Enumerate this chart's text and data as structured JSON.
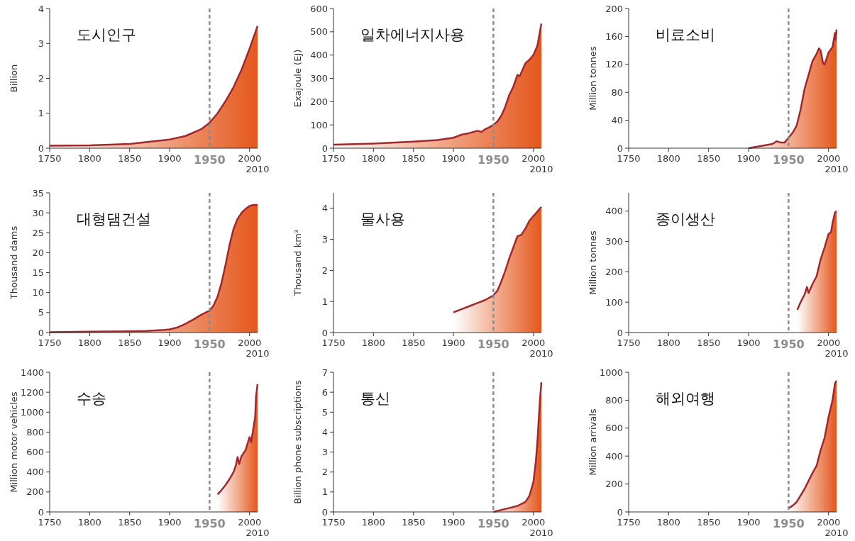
{
  "chart_data": [
    {
      "type": "area",
      "title": "도시인구",
      "ylabel": "Billion",
      "annotations": [
        "2010"
      ],
      "xlim": [
        1750,
        2010
      ],
      "ylim": [
        0,
        4
      ],
      "xticks": [
        1750,
        1800,
        1850,
        1900,
        2000
      ],
      "yticks": [
        0,
        1,
        2,
        3,
        4
      ],
      "grid": false,
      "ref_lines": [
        {
          "axis": "x",
          "value": 1950,
          "label": "1950",
          "color": "#8c8c8c",
          "line_style": "dashed"
        }
      ],
      "series": [
        {
          "color": "#a3262a",
          "x": [
            1750,
            1800,
            1850,
            1900,
            1920,
            1940,
            1950,
            1960,
            1970,
            1980,
            1990,
            2000,
            2010
          ],
          "values": [
            0.07,
            0.08,
            0.12,
            0.25,
            0.35,
            0.55,
            0.73,
            1.0,
            1.35,
            1.75,
            2.25,
            2.85,
            3.5
          ]
        }
      ]
    },
    {
      "type": "area",
      "title": "일차에너지사용",
      "ylabel": "Exajoule (EJ)",
      "annotations": [
        "2010"
      ],
      "xlim": [
        1750,
        2010
      ],
      "ylim": [
        0,
        600
      ],
      "xticks": [
        1750,
        1800,
        1850,
        1900,
        2000
      ],
      "yticks": [
        0,
        100,
        200,
        300,
        400,
        500,
        600
      ],
      "grid": false,
      "ref_lines": [
        {
          "axis": "x",
          "value": 1950,
          "label": "1950",
          "color": "#8c8c8c",
          "line_style": "dashed"
        }
      ],
      "series": [
        {
          "color": "#a3262a",
          "x": [
            1750,
            1800,
            1850,
            1880,
            1900,
            1910,
            1920,
            1930,
            1935,
            1940,
            1945,
            1950,
            1955,
            1960,
            1965,
            1970,
            1975,
            1980,
            1983,
            1990,
            1995,
            2000,
            2005,
            2010
          ],
          "values": [
            15,
            20,
            28,
            35,
            45,
            58,
            65,
            75,
            70,
            82,
            90,
            100,
            115,
            140,
            180,
            230,
            265,
            315,
            310,
            365,
            380,
            400,
            440,
            535
          ]
        }
      ]
    },
    {
      "type": "area",
      "title": "비료소비",
      "ylabel": "Million tonnes",
      "annotations": [
        "2010"
      ],
      "xlim": [
        1750,
        2010
      ],
      "ylim": [
        0,
        200
      ],
      "xticks": [
        1750,
        1800,
        1850,
        1900,
        2000
      ],
      "yticks": [
        0,
        40,
        80,
        120,
        160,
        200
      ],
      "grid": false,
      "ref_lines": [
        {
          "axis": "x",
          "value": 1950,
          "label": "1950",
          "color": "#8c8c8c",
          "line_style": "dashed"
        }
      ],
      "series": [
        {
          "color": "#a3262a",
          "x": [
            1900,
            1910,
            1920,
            1930,
            1935,
            1940,
            1945,
            1950,
            1955,
            1960,
            1965,
            1970,
            1975,
            1980,
            1985,
            1988,
            1990,
            1993,
            1995,
            2000,
            2005,
            2008,
            2009,
            2010
          ],
          "values": [
            0,
            2,
            4,
            6,
            10,
            8,
            8,
            15,
            22,
            32,
            55,
            85,
            105,
            125,
            135,
            143,
            140,
            122,
            120,
            137,
            145,
            165,
            155,
            170
          ]
        }
      ]
    },
    {
      "type": "area",
      "title": "대형댐건설",
      "ylabel": "Thousand dams",
      "annotations": [
        "2010"
      ],
      "xlim": [
        1750,
        2010
      ],
      "ylim": [
        0,
        35
      ],
      "xticks": [
        1750,
        1800,
        1850,
        1900,
        2000
      ],
      "yticks": [
        0,
        5,
        10,
        15,
        20,
        25,
        30,
        35
      ],
      "grid": false,
      "ref_lines": [
        {
          "axis": "x",
          "value": 1950,
          "label": "1950",
          "color": "#8c8c8c",
          "line_style": "dashed"
        }
      ],
      "series": [
        {
          "color": "#a3262a",
          "x": [
            1750,
            1800,
            1850,
            1870,
            1890,
            1900,
            1910,
            1920,
            1930,
            1940,
            1950,
            1955,
            1960,
            1965,
            1970,
            1975,
            1980,
            1985,
            1990,
            1995,
            2000,
            2005,
            2010
          ],
          "values": [
            0.1,
            0.2,
            0.3,
            0.4,
            0.6,
            0.8,
            1.3,
            2.2,
            3.3,
            4.5,
            5.5,
            6.8,
            9,
            12.5,
            17,
            22,
            26,
            28.5,
            30,
            31,
            31.7,
            32,
            32
          ]
        }
      ]
    },
    {
      "type": "area",
      "title": "물사용",
      "ylabel": "Thousand km³",
      "annotations": [
        "2010"
      ],
      "xlim": [
        1750,
        2010
      ],
      "ylim": [
        0,
        4.5
      ],
      "xticks": [
        1750,
        1800,
        1850,
        1900,
        2000
      ],
      "yticks": [
        0,
        1,
        2,
        3,
        4
      ],
      "grid": false,
      "ref_lines": [
        {
          "axis": "x",
          "value": 1950,
          "label": "1950",
          "color": "#8c8c8c",
          "line_style": "dashed"
        }
      ],
      "series": [
        {
          "color": "#a3262a",
          "x": [
            1900,
            1910,
            1920,
            1930,
            1940,
            1950,
            1955,
            1960,
            1965,
            1970,
            1975,
            1980,
            1985,
            1990,
            1995,
            2000,
            2005,
            2010
          ],
          "values": [
            0.65,
            0.75,
            0.85,
            0.95,
            1.05,
            1.2,
            1.35,
            1.65,
            2.0,
            2.4,
            2.75,
            3.1,
            3.15,
            3.35,
            3.6,
            3.75,
            3.9,
            4.05
          ]
        }
      ]
    },
    {
      "type": "area",
      "title": "종이생산",
      "ylabel": "Million tonnes",
      "annotations": [
        "2010"
      ],
      "xlim": [
        1750,
        2010
      ],
      "ylim": [
        0,
        460
      ],
      "xticks": [
        1750,
        1800,
        1850,
        1900,
        2000
      ],
      "yticks": [
        0,
        100,
        200,
        300,
        400
      ],
      "grid": false,
      "ref_lines": [
        {
          "axis": "x",
          "value": 1950,
          "label": "1950",
          "color": "#8c8c8c",
          "line_style": "dashed"
        }
      ],
      "series": [
        {
          "color": "#a3262a",
          "x": [
            1961,
            1965,
            1970,
            1973,
            1975,
            1980,
            1985,
            1990,
            1995,
            2000,
            2003,
            2005,
            2008,
            2010
          ],
          "values": [
            75,
            100,
            125,
            150,
            130,
            160,
            185,
            240,
            280,
            325,
            330,
            360,
            395,
            400
          ]
        }
      ]
    },
    {
      "type": "area",
      "title": "수송",
      "ylabel": "Million motor vehicles",
      "annotations": [
        "2010"
      ],
      "xlim": [
        1750,
        2010
      ],
      "ylim": [
        0,
        1400
      ],
      "xticks": [
        1750,
        1800,
        1850,
        1900,
        2000
      ],
      "yticks": [
        0,
        200,
        400,
        600,
        800,
        1000,
        1200,
        1400
      ],
      "grid": false,
      "ref_lines": [
        {
          "axis": "x",
          "value": 1950,
          "label": "1950",
          "color": "#8c8c8c",
          "line_style": "dashed"
        }
      ],
      "series": [
        {
          "color": "#a3262a",
          "x": [
            1960,
            1965,
            1970,
            1975,
            1980,
            1983,
            1985,
            1987,
            1990,
            1995,
            2000,
            2002,
            2005,
            2007,
            2008,
            2010
          ],
          "values": [
            175,
            220,
            270,
            330,
            400,
            470,
            550,
            480,
            560,
            620,
            750,
            700,
            850,
            950,
            1150,
            1280
          ]
        }
      ]
    },
    {
      "type": "area",
      "title": "통신",
      "ylabel": "Billion phone subscriptions",
      "annotations": [
        "2010"
      ],
      "xlim": [
        1750,
        2010
      ],
      "ylim": [
        0,
        7
      ],
      "xticks": [
        1750,
        1800,
        1850,
        1900,
        2000
      ],
      "yticks": [
        0,
        1,
        2,
        3,
        4,
        5,
        6,
        7
      ],
      "grid": false,
      "ref_lines": [
        {
          "axis": "x",
          "value": 1950,
          "label": "1950",
          "color": "#8c8c8c",
          "line_style": "dashed"
        }
      ],
      "series": [
        {
          "color": "#a3262a",
          "x": [
            1950,
            1960,
            1970,
            1980,
            1990,
            1995,
            2000,
            2003,
            2005,
            2008,
            2010
          ],
          "values": [
            0.0,
            0.1,
            0.2,
            0.3,
            0.5,
            0.8,
            1.5,
            2.5,
            3.5,
            5.5,
            6.5
          ]
        }
      ]
    },
    {
      "type": "area",
      "title": "해외여행",
      "ylabel": "Million arrivals",
      "annotations": [
        "2010"
      ],
      "xlim": [
        1750,
        2010
      ],
      "ylim": [
        0,
        1000
      ],
      "xticks": [
        1750,
        1800,
        1850,
        1900,
        2000
      ],
      "yticks": [
        0,
        200,
        400,
        600,
        800,
        1000
      ],
      "grid": false,
      "ref_lines": [
        {
          "axis": "x",
          "value": 1950,
          "label": "1950",
          "color": "#8c8c8c",
          "line_style": "dashed"
        }
      ],
      "series": [
        {
          "color": "#a3262a",
          "x": [
            1950,
            1955,
            1960,
            1970,
            1980,
            1985,
            1990,
            1995,
            2000,
            2005,
            2008,
            2010
          ],
          "values": [
            25,
            45,
            70,
            165,
            280,
            330,
            440,
            530,
            680,
            800,
            920,
            940
          ]
        }
      ]
    }
  ]
}
